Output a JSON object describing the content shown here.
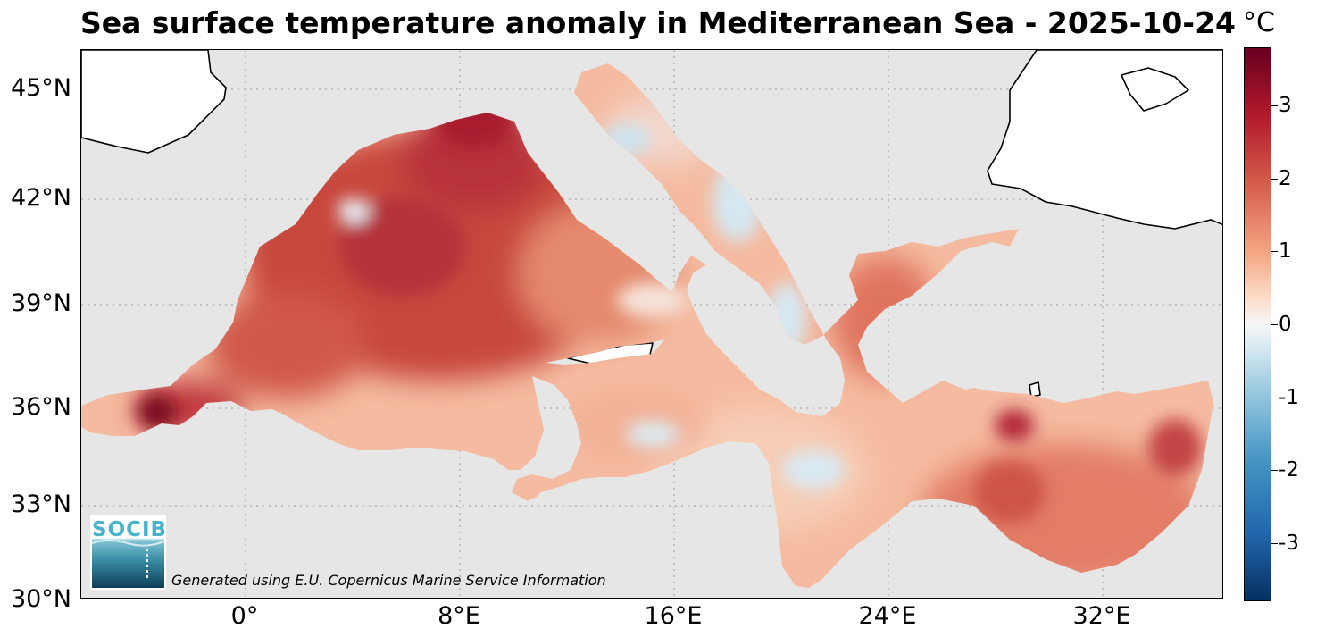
{
  "title": "Sea surface temperature anomaly in Mediterranean Sea - 2025-10-24",
  "colorbar": {
    "unit": "°C",
    "range": [
      -3.8,
      3.8
    ],
    "ticks": [
      "3",
      "2",
      "1",
      "0",
      "-1",
      "-2",
      "-3"
    ],
    "colormap": "RdBu_r"
  },
  "axes": {
    "lat_labels": [
      "45°N",
      "42°N",
      "39°N",
      "36°N",
      "33°N",
      "30°N"
    ],
    "lon_labels": [
      "0°",
      "8°E",
      "16°E",
      "24°E",
      "32°E"
    ],
    "lat_range": [
      30,
      46
    ],
    "lon_range": [
      -6,
      36.5
    ],
    "grid": "dotted"
  },
  "colors": {
    "land": "#ffffff",
    "no_data": "#e6e6e6",
    "coastline": "#000000",
    "warm": "#b2182b",
    "cool": "#92c5de"
  },
  "logo": {
    "text": "SOCIB"
  },
  "credit": "Generated using E.U. Copernicus Marine Service Information"
}
